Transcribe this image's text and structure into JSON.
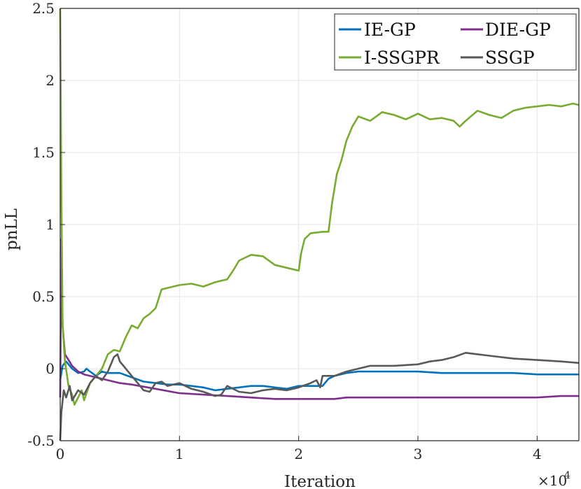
{
  "chart_data": {
    "type": "line",
    "title": "",
    "xlabel": "Iteration",
    "ylabel": "pnLL",
    "x_exponent_label": "×10",
    "x_exponent_power": "4",
    "xlim": [
      0,
      4.35
    ],
    "ylim": [
      -0.5,
      2.5
    ],
    "x_ticks": [
      0,
      1,
      2,
      3,
      4
    ],
    "x_tick_labels": [
      "0",
      "1",
      "2",
      "3",
      "4"
    ],
    "y_ticks": [
      -0.5,
      0,
      0.5,
      1,
      1.5,
      2,
      2.5
    ],
    "y_tick_labels": [
      "-0.5",
      "0",
      "0.5",
      "1",
      "1.5",
      "2",
      "2.5"
    ],
    "grid": true,
    "legend_position": "top-right",
    "series": [
      {
        "name": "IE-GP",
        "color": "#0072BD",
        "points": [
          [
            0,
            -0.08
          ],
          [
            0.02,
            0.02
          ],
          [
            0.05,
            0.05
          ],
          [
            0.1,
            0.0
          ],
          [
            0.15,
            -0.03
          ],
          [
            0.2,
            -0.02
          ],
          [
            0.22,
            0.0
          ],
          [
            0.25,
            -0.02
          ],
          [
            0.3,
            -0.05
          ],
          [
            0.35,
            -0.02
          ],
          [
            0.4,
            -0.03
          ],
          [
            0.5,
            -0.03
          ],
          [
            0.6,
            -0.06
          ],
          [
            0.7,
            -0.09
          ],
          [
            0.8,
            -0.1
          ],
          [
            0.9,
            -0.11
          ],
          [
            1.0,
            -0.11
          ],
          [
            1.1,
            -0.12
          ],
          [
            1.2,
            -0.13
          ],
          [
            1.3,
            -0.15
          ],
          [
            1.4,
            -0.14
          ],
          [
            1.5,
            -0.13
          ],
          [
            1.6,
            -0.12
          ],
          [
            1.7,
            -0.12
          ],
          [
            1.8,
            -0.13
          ],
          [
            1.9,
            -0.14
          ],
          [
            2.0,
            -0.12
          ],
          [
            2.1,
            -0.12
          ],
          [
            2.2,
            -0.12
          ],
          [
            2.25,
            -0.07
          ],
          [
            2.3,
            -0.05
          ],
          [
            2.4,
            -0.03
          ],
          [
            2.5,
            -0.02
          ],
          [
            2.6,
            -0.02
          ],
          [
            2.8,
            -0.02
          ],
          [
            3.0,
            -0.02
          ],
          [
            3.2,
            -0.03
          ],
          [
            3.4,
            -0.03
          ],
          [
            3.6,
            -0.03
          ],
          [
            3.8,
            -0.03
          ],
          [
            4.0,
            -0.04
          ],
          [
            4.2,
            -0.04
          ],
          [
            4.35,
            -0.04
          ]
        ]
      },
      {
        "name": "DIE-GP",
        "color": "#7E2F8E",
        "points": [
          [
            0,
            -0.2
          ],
          [
            0.01,
            0.9
          ],
          [
            0.02,
            0.3
          ],
          [
            0.04,
            0.1
          ],
          [
            0.07,
            0.06
          ],
          [
            0.1,
            0.02
          ],
          [
            0.15,
            -0.02
          ],
          [
            0.2,
            -0.04
          ],
          [
            0.3,
            -0.06
          ],
          [
            0.4,
            -0.08
          ],
          [
            0.5,
            -0.1
          ],
          [
            0.6,
            -0.11
          ],
          [
            0.8,
            -0.14
          ],
          [
            1.0,
            -0.17
          ],
          [
            1.2,
            -0.18
          ],
          [
            1.4,
            -0.19
          ],
          [
            1.6,
            -0.2
          ],
          [
            1.8,
            -0.21
          ],
          [
            2.0,
            -0.21
          ],
          [
            2.1,
            -0.21
          ],
          [
            2.2,
            -0.21
          ],
          [
            2.3,
            -0.21
          ],
          [
            2.4,
            -0.2
          ],
          [
            2.6,
            -0.2
          ],
          [
            2.8,
            -0.2
          ],
          [
            3.0,
            -0.2
          ],
          [
            3.2,
            -0.2
          ],
          [
            3.4,
            -0.2
          ],
          [
            3.6,
            -0.2
          ],
          [
            3.8,
            -0.2
          ],
          [
            4.0,
            -0.2
          ],
          [
            4.2,
            -0.19
          ],
          [
            4.35,
            -0.19
          ]
        ]
      },
      {
        "name": "I-SSGPR",
        "color": "#77AC30",
        "points": [
          [
            0,
            2.5
          ],
          [
            0.01,
            1.2
          ],
          [
            0.02,
            0.3
          ],
          [
            0.04,
            0.05
          ],
          [
            0.07,
            -0.12
          ],
          [
            0.1,
            -0.18
          ],
          [
            0.12,
            -0.25
          ],
          [
            0.15,
            -0.2
          ],
          [
            0.18,
            -0.15
          ],
          [
            0.2,
            -0.22
          ],
          [
            0.25,
            -0.1
          ],
          [
            0.3,
            -0.05
          ],
          [
            0.35,
            0.0
          ],
          [
            0.4,
            0.1
          ],
          [
            0.45,
            0.13
          ],
          [
            0.5,
            0.12
          ],
          [
            0.55,
            0.22
          ],
          [
            0.6,
            0.3
          ],
          [
            0.65,
            0.28
          ],
          [
            0.7,
            0.35
          ],
          [
            0.75,
            0.38
          ],
          [
            0.8,
            0.42
          ],
          [
            0.85,
            0.55
          ],
          [
            0.9,
            0.56
          ],
          [
            1.0,
            0.58
          ],
          [
            1.1,
            0.59
          ],
          [
            1.2,
            0.57
          ],
          [
            1.3,
            0.6
          ],
          [
            1.4,
            0.62
          ],
          [
            1.45,
            0.68
          ],
          [
            1.5,
            0.75
          ],
          [
            1.6,
            0.79
          ],
          [
            1.7,
            0.78
          ],
          [
            1.8,
            0.72
          ],
          [
            1.9,
            0.7
          ],
          [
            2.0,
            0.68
          ],
          [
            2.02,
            0.8
          ],
          [
            2.05,
            0.9
          ],
          [
            2.1,
            0.94
          ],
          [
            2.2,
            0.95
          ],
          [
            2.25,
            0.95
          ],
          [
            2.28,
            1.15
          ],
          [
            2.32,
            1.35
          ],
          [
            2.36,
            1.45
          ],
          [
            2.4,
            1.58
          ],
          [
            2.45,
            1.68
          ],
          [
            2.5,
            1.75
          ],
          [
            2.6,
            1.72
          ],
          [
            2.7,
            1.78
          ],
          [
            2.8,
            1.76
          ],
          [
            2.9,
            1.73
          ],
          [
            3.0,
            1.77
          ],
          [
            3.1,
            1.73
          ],
          [
            3.2,
            1.74
          ],
          [
            3.3,
            1.72
          ],
          [
            3.35,
            1.68
          ],
          [
            3.4,
            1.72
          ],
          [
            3.5,
            1.79
          ],
          [
            3.6,
            1.76
          ],
          [
            3.7,
            1.74
          ],
          [
            3.8,
            1.79
          ],
          [
            3.9,
            1.81
          ],
          [
            4.0,
            1.82
          ],
          [
            4.1,
            1.83
          ],
          [
            4.2,
            1.82
          ],
          [
            4.3,
            1.84
          ],
          [
            4.35,
            1.83
          ]
        ]
      },
      {
        "name": "SSGP",
        "color": "#595959",
        "points": [
          [
            0,
            -0.5
          ],
          [
            0.01,
            -0.3
          ],
          [
            0.03,
            -0.15
          ],
          [
            0.05,
            -0.2
          ],
          [
            0.08,
            -0.12
          ],
          [
            0.1,
            -0.22
          ],
          [
            0.15,
            -0.15
          ],
          [
            0.2,
            -0.18
          ],
          [
            0.25,
            -0.1
          ],
          [
            0.3,
            -0.05
          ],
          [
            0.35,
            -0.08
          ],
          [
            0.4,
            -0.02
          ],
          [
            0.45,
            0.08
          ],
          [
            0.48,
            0.1
          ],
          [
            0.5,
            0.05
          ],
          [
            0.55,
            0.0
          ],
          [
            0.6,
            -0.05
          ],
          [
            0.65,
            -0.1
          ],
          [
            0.7,
            -0.15
          ],
          [
            0.75,
            -0.16
          ],
          [
            0.8,
            -0.1
          ],
          [
            0.85,
            -0.09
          ],
          [
            0.9,
            -0.12
          ],
          [
            1.0,
            -0.1
          ],
          [
            1.1,
            -0.14
          ],
          [
            1.2,
            -0.16
          ],
          [
            1.3,
            -0.19
          ],
          [
            1.35,
            -0.18
          ],
          [
            1.4,
            -0.12
          ],
          [
            1.5,
            -0.16
          ],
          [
            1.6,
            -0.17
          ],
          [
            1.7,
            -0.15
          ],
          [
            1.8,
            -0.14
          ],
          [
            1.9,
            -0.15
          ],
          [
            2.0,
            -0.13
          ],
          [
            2.1,
            -0.1
          ],
          [
            2.15,
            -0.08
          ],
          [
            2.18,
            -0.13
          ],
          [
            2.2,
            -0.05
          ],
          [
            2.3,
            -0.05
          ],
          [
            2.4,
            -0.02
          ],
          [
            2.5,
            0.0
          ],
          [
            2.6,
            0.02
          ],
          [
            2.8,
            0.02
          ],
          [
            3.0,
            0.03
          ],
          [
            3.1,
            0.05
          ],
          [
            3.2,
            0.06
          ],
          [
            3.3,
            0.08
          ],
          [
            3.4,
            0.11
          ],
          [
            3.5,
            0.1
          ],
          [
            3.6,
            0.09
          ],
          [
            3.8,
            0.07
          ],
          [
            4.0,
            0.06
          ],
          [
            4.2,
            0.05
          ],
          [
            4.35,
            0.04
          ]
        ]
      }
    ]
  }
}
